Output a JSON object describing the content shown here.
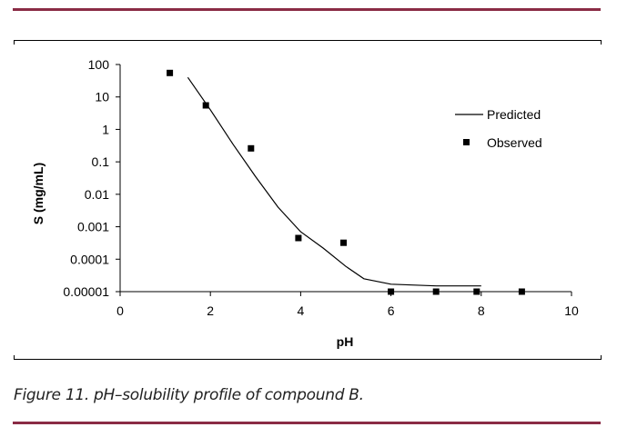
{
  "caption": "Figure 11. pH–solubility profile of compound B.",
  "colors": {
    "rule": "#8a2b45",
    "series": "#000000"
  },
  "chart_data": {
    "type": "scatter",
    "title": "",
    "xlabel": "pH",
    "ylabel": "S (mg/mL)",
    "xlim": [
      0,
      10
    ],
    "ylim": [
      1e-05,
      100
    ],
    "yscale": "log",
    "grid": false,
    "legend_position": "right",
    "x_ticks": [
      0,
      2,
      4,
      6,
      8,
      10
    ],
    "x_tick_labels": [
      "0",
      "2",
      "4",
      "6",
      "8",
      "10"
    ],
    "y_ticks": [
      1e-05,
      0.0001,
      0.001,
      0.01,
      0.1,
      1,
      10,
      100
    ],
    "y_tick_labels": [
      "0.00001",
      "0.0001",
      "0.001",
      "0.01",
      "0.1",
      "1",
      "10",
      "100"
    ],
    "series": [
      {
        "name": "Predicted",
        "kind": "line",
        "points": [
          [
            1.5,
            40
          ],
          [
            2,
            4
          ],
          [
            2.5,
            0.35
          ],
          [
            3,
            0.035
          ],
          [
            3.5,
            0.004
          ],
          [
            4,
            0.0007
          ],
          [
            4.5,
            0.00022
          ],
          [
            5,
            6e-05
          ],
          [
            5.4,
            2.5e-05
          ],
          [
            6,
            1.7e-05
          ],
          [
            7,
            1.5e-05
          ],
          [
            8,
            1.5e-05
          ]
        ]
      },
      {
        "name": "Observed",
        "kind": "marker",
        "points": [
          [
            1.1,
            55
          ],
          [
            1.9,
            5.5
          ],
          [
            2.9,
            0.26
          ],
          [
            3.95,
            0.00045
          ],
          [
            4.95,
            0.00032
          ],
          [
            6,
            1e-05
          ],
          [
            7,
            1e-05
          ],
          [
            7.9,
            1e-05
          ],
          [
            8.9,
            1e-05
          ]
        ]
      }
    ]
  }
}
